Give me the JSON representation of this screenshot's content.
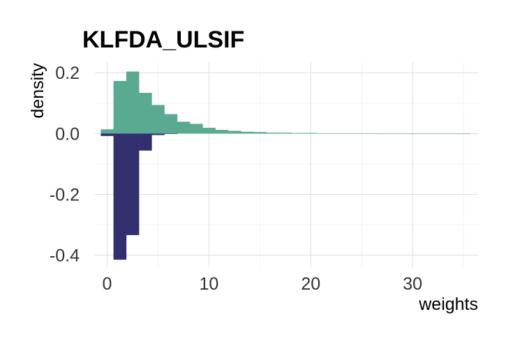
{
  "chart_data": {
    "type": "bar",
    "title": "KLFDA_ULSIF",
    "xlabel": "weights",
    "ylabel": "density",
    "xlim": [
      -1.2,
      36.5
    ],
    "ylim": [
      -0.44,
      0.235
    ],
    "x_ticks": [
      0,
      10,
      20,
      30
    ],
    "x_tick_labels": [
      "0",
      "10",
      "20",
      "30"
    ],
    "y_ticks": [
      0.2,
      0.0,
      -0.2,
      -0.4
    ],
    "y_tick_labels": [
      "0.2",
      "0.0",
      "-0.2",
      "-0.4"
    ],
    "grid": true,
    "legend": "none",
    "bin_width": 1.25,
    "series": [
      {
        "color": "#5aa991",
        "bins": [
          {
            "x0": -0.625,
            "value": 0.014
          },
          {
            "x0": 0.625,
            "value": 0.173
          },
          {
            "x0": 1.875,
            "value": 0.204
          },
          {
            "x0": 3.125,
            "value": 0.134
          },
          {
            "x0": 4.375,
            "value": 0.094
          },
          {
            "x0": 5.625,
            "value": 0.064
          },
          {
            "x0": 6.875,
            "value": 0.039
          },
          {
            "x0": 8.125,
            "value": 0.032
          },
          {
            "x0": 9.375,
            "value": 0.019
          },
          {
            "x0": 10.625,
            "value": 0.012
          },
          {
            "x0": 11.875,
            "value": 0.009
          },
          {
            "x0": 13.125,
            "value": 0.006
          },
          {
            "x0": 14.375,
            "value": 0.005
          },
          {
            "x0": 15.625,
            "value": 0.003
          },
          {
            "x0": 16.875,
            "value": 0.003
          },
          {
            "x0": 18.125,
            "value": 0.002
          },
          {
            "x0": 19.375,
            "value": 0.002
          },
          {
            "x0": 20.625,
            "value": 0.001
          },
          {
            "x0": 21.875,
            "value": 0.001
          },
          {
            "x0": 23.125,
            "value": 0.001
          },
          {
            "x0": 24.375,
            "value": 0.001
          },
          {
            "x0": 25.625,
            "value": 0.001
          },
          {
            "x0": 26.875,
            "value": 0.0005
          },
          {
            "x0": 28.125,
            "value": 0.0005
          },
          {
            "x0": 29.375,
            "value": 0.0005
          },
          {
            "x0": 30.625,
            "value": 0.0005
          },
          {
            "x0": 31.875,
            "value": 0.0003
          },
          {
            "x0": 33.125,
            "value": 0.0003
          },
          {
            "x0": 34.375,
            "value": 0.0003
          }
        ]
      },
      {
        "color": "#322f6f",
        "bins": [
          {
            "x0": -0.625,
            "value": -0.008
          },
          {
            "x0": 0.625,
            "value": -0.415
          },
          {
            "x0": 1.875,
            "value": -0.334
          },
          {
            "x0": 3.125,
            "value": -0.056
          },
          {
            "x0": 4.375,
            "value": -0.005
          },
          {
            "x0": 5.625,
            "value": -0.001
          }
        ]
      }
    ]
  }
}
